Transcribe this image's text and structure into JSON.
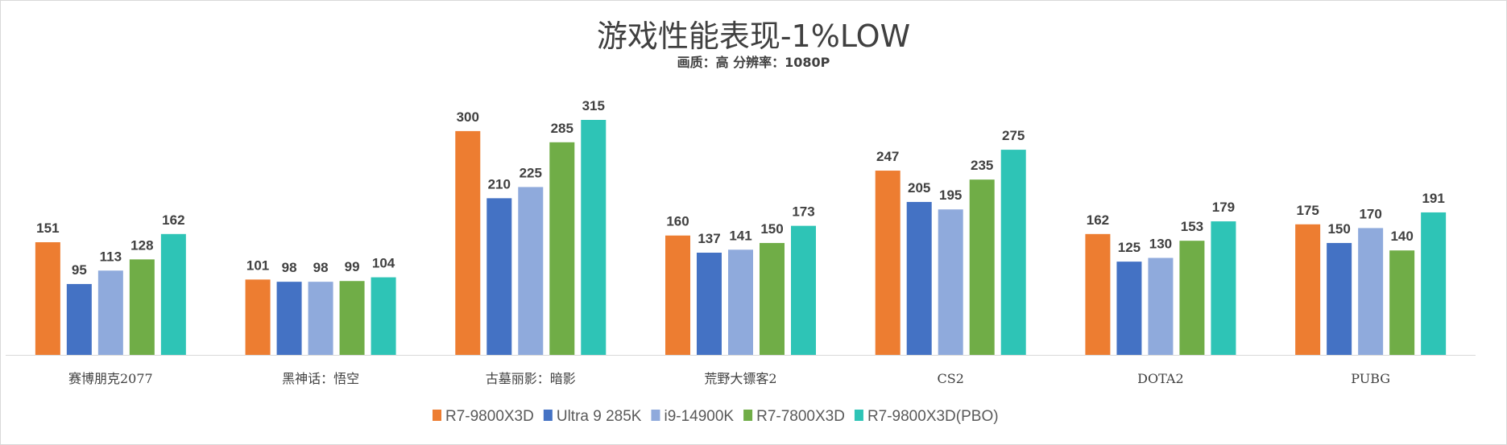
{
  "chart_data": {
    "type": "bar",
    "title": "游戏性能表现-1%LOW",
    "subtitle": "画质：高 分辨率：1080P",
    "categories": [
      "赛博朋克2077",
      "黑神话：悟空",
      "古墓丽影：暗影",
      "荒野大镖客2",
      "CS2",
      "DOTA2",
      "PUBG"
    ],
    "series": [
      {
        "name": "R7-9800X3D",
        "color": "#ed7d31",
        "values": [
          151,
          101,
          300,
          160,
          247,
          162,
          175
        ]
      },
      {
        "name": "Ultra 9 285K",
        "color": "#4472c4",
        "values": [
          95,
          98,
          210,
          137,
          205,
          125,
          150
        ]
      },
      {
        "name": "i9-14900K",
        "color": "#8faadc",
        "values": [
          113,
          98,
          225,
          141,
          195,
          130,
          170
        ]
      },
      {
        "name": "R7-7800X3D",
        "color": "#70ad47",
        "values": [
          128,
          99,
          285,
          150,
          235,
          153,
          140
        ]
      },
      {
        "name": "R7-9800X3D(PBO)",
        "color": "#2ec4b6",
        "values": [
          162,
          104,
          315,
          173,
          275,
          179,
          191
        ]
      }
    ],
    "ylim": [
      0,
      315
    ],
    "grid": false,
    "legend": "bottom",
    "xlabel": "",
    "ylabel": ""
  }
}
